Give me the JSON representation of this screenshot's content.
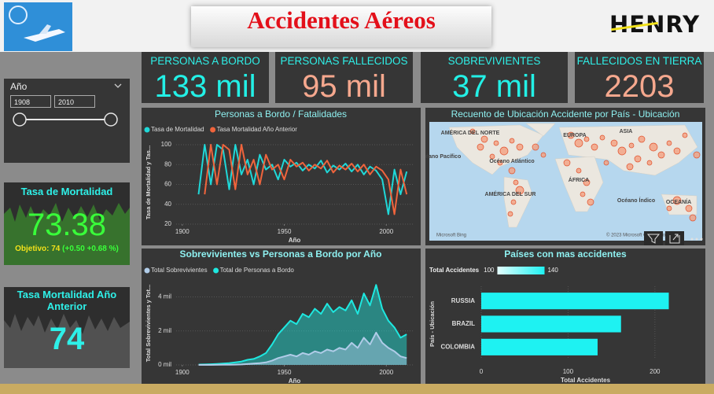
{
  "header": {
    "title": "Accidentes Aéreos",
    "brand": "HENRY"
  },
  "kpis": [
    {
      "title": "PERSONAS A BORDO",
      "value": "133 mil"
    },
    {
      "title": "PERSONAS FALLECIDOS",
      "value": "95 mil"
    },
    {
      "title": "SOBREVIVIENTES",
      "value": "37 mil"
    },
    {
      "title": "FALLECIDOS EN TIERRA",
      "value": "2203"
    }
  ],
  "slicer": {
    "label": "Año",
    "from": 1908,
    "to": 2010
  },
  "mortality_card": {
    "title": "Tasa de Mortalidad",
    "value": 73.38,
    "goal": "Objetivo: 74",
    "change": "(+0.50 +0.68 %)"
  },
  "previous_card": {
    "title": "Tasa Mortalidad Año Anterior",
    "value": 74
  },
  "map": {
    "title": "Recuento de Ubicación Accidente por País - Ubicación",
    "labels": [
      "AMÉRICA DEL NORTE",
      "EUROPA",
      "ASIA",
      "Océano Pacífico",
      "Océano Atlántico",
      "ÁFRICA",
      "AMÉRICA DEL SUR",
      "Océano Índico",
      "OCEANÍA"
    ],
    "provider": "Microsoft Bing",
    "copyright": "© 2023 Microsoft Corporation Terms"
  },
  "chart_data": [
    {
      "type": "line",
      "title": "Personas a Bordo / Fatalidades",
      "xlabel": "Año",
      "ylabel": "Tasa de Mortalidad y Tas...",
      "x": [
        1908,
        1911,
        1914,
        1917,
        1920,
        1923,
        1926,
        1929,
        1932,
        1935,
        1938,
        1941,
        1944,
        1947,
        1950,
        1953,
        1956,
        1959,
        1962,
        1965,
        1968,
        1971,
        1974,
        1977,
        1980,
        1983,
        1986,
        1989,
        1992,
        1995,
        1998,
        2001,
        2004,
        2007,
        2010
      ],
      "xlim": [
        1897,
        2013
      ],
      "xticks": [
        1900,
        1950,
        2000
      ],
      "ylim": [
        20,
        104
      ],
      "yticks": [
        20,
        40,
        60,
        80,
        100
      ],
      "grid": true,
      "series": [
        {
          "name": "Tasa de Mortalidad",
          "color": "#1fd8d8",
          "values": [
            50,
            100,
            60,
            100,
            95,
            55,
            100,
            70,
            85,
            60,
            90,
            75,
            80,
            65,
            85,
            78,
            82,
            74,
            80,
            76,
            84,
            72,
            79,
            75,
            81,
            73,
            80,
            70,
            78,
            74,
            65,
            30,
            75,
            50,
            73
          ]
        },
        {
          "name": "Tasa Mortalidad Año Anterior",
          "color": "#f0643c",
          "values": [
            null,
            50,
            100,
            60,
            100,
            95,
            55,
            100,
            70,
            85,
            60,
            90,
            75,
            80,
            65,
            85,
            78,
            82,
            74,
            80,
            76,
            84,
            72,
            79,
            75,
            81,
            73,
            80,
            70,
            78,
            74,
            65,
            30,
            75,
            50
          ]
        }
      ]
    },
    {
      "type": "area",
      "title": "Sobrevivientes vs Personas a Bordo por Año",
      "xlabel": "Año",
      "ylabel": "Total Sobrevivientes y Tot...",
      "x": [
        1908,
        1911,
        1914,
        1917,
        1920,
        1923,
        1926,
        1929,
        1932,
        1935,
        1938,
        1941,
        1944,
        1947,
        1950,
        1953,
        1956,
        1959,
        1962,
        1965,
        1968,
        1971,
        1974,
        1977,
        1980,
        1983,
        1986,
        1989,
        1992,
        1995,
        1998,
        2001,
        2004,
        2007,
        2010
      ],
      "xlim": [
        1897,
        2013
      ],
      "xticks": [
        1900,
        1950,
        2000
      ],
      "ylim": [
        0,
        4900
      ],
      "yticks": [
        {
          "value": 0,
          "label": "0 mil"
        },
        {
          "value": 2000,
          "label": "2 mil"
        },
        {
          "value": 4000,
          "label": "4 mil"
        }
      ],
      "grid": true,
      "series": [
        {
          "name": "Total Sobrevivientes",
          "color": "#b0cce8",
          "values": [
            0,
            0,
            0,
            5,
            10,
            10,
            20,
            30,
            50,
            80,
            100,
            150,
            250,
            400,
            500,
            600,
            500,
            700,
            600,
            800,
            700,
            900,
            800,
            1000,
            900,
            1300,
            1000,
            1600,
            1200,
            1900,
            1300,
            1000,
            800,
            500,
            400
          ]
        },
        {
          "name": "Total de Personas a Bordo",
          "color": "#1ee8e0",
          "values": [
            20,
            30,
            40,
            60,
            80,
            100,
            150,
            200,
            300,
            350,
            500,
            700,
            1200,
            1800,
            2200,
            2600,
            2400,
            3000,
            2800,
            3300,
            3000,
            3600,
            3100,
            3400,
            3200,
            3800,
            3000,
            4200,
            3500,
            4700,
            3300,
            2600,
            2200,
            1600,
            1800
          ]
        }
      ]
    },
    {
      "type": "bar",
      "orientation": "horizontal",
      "title": "Países con mas accidentes",
      "xlabel": "Total Accidentes",
      "ylabel": "País - Ubicación",
      "categories": [
        "RUSSIA",
        "BRAZIL",
        "COLOMBIA"
      ],
      "values": [
        216,
        161,
        134
      ],
      "color": "#1ef2f2",
      "xlim": [
        0,
        240
      ],
      "xticks": [
        0,
        100,
        200
      ],
      "color_scale": {
        "title": "Total Accidentes",
        "min": 100,
        "max": 140
      }
    }
  ]
}
